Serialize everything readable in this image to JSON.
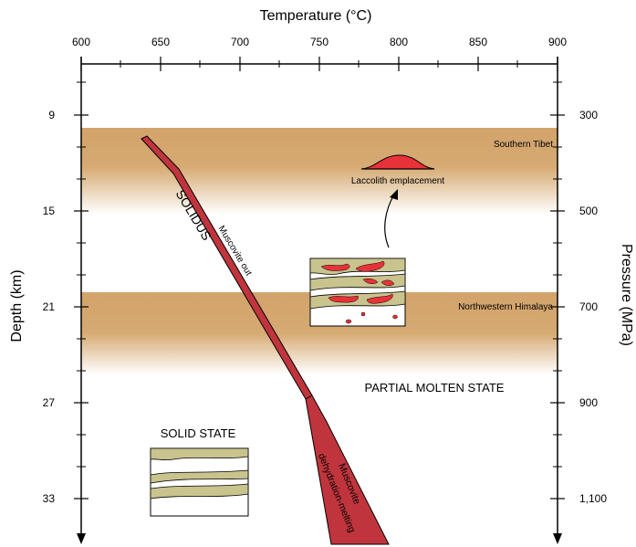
{
  "axes": {
    "top_title": "Temperature (°C)",
    "left_title": "Depth (km)",
    "right_title": "Pressure (MPa)",
    "temperature_ticks": [
      "600",
      "650",
      "700",
      "750",
      "800",
      "850",
      "900"
    ],
    "depth_ticks": [
      "9",
      "15",
      "21",
      "27",
      "33"
    ],
    "pressure_ticks": [
      "300",
      "500",
      "700",
      "900",
      "1,100"
    ]
  },
  "bands": {
    "upper": "Southern Tibet",
    "lower": "Northwestern Himalaya",
    "color": "#d4a76a"
  },
  "curve": {
    "solidus": "SOLIDUS",
    "muscovite_out": "Muscovite out",
    "dehydration_line1": "Muscovite",
    "dehydration_line2": "dehydration-melting",
    "fill_color": "#c0353d"
  },
  "states": {
    "partial": "PARTIAL MOLTEN STATE",
    "solid": "SOLID STATE"
  },
  "laccolith": {
    "label": "Laccolith emplacement",
    "color": "#e8323a"
  },
  "rock_color": "#c9c48e"
}
